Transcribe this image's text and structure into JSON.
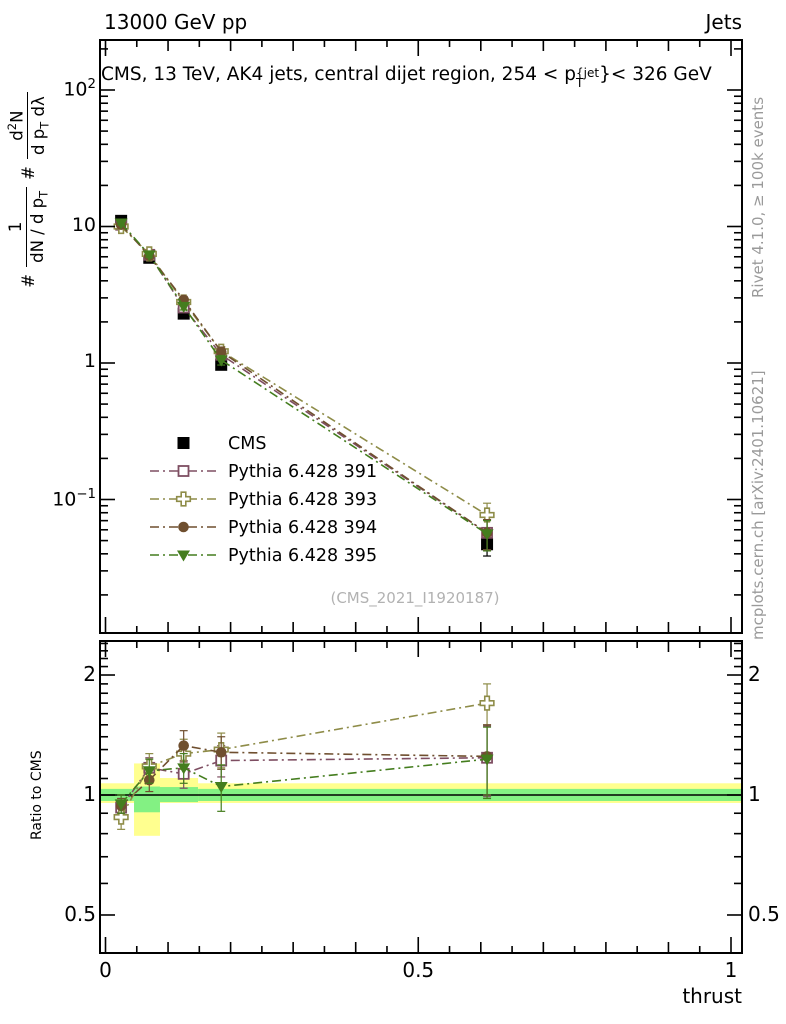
{
  "header": {
    "left": "13000 GeV pp",
    "right": "Jets"
  },
  "title": {
    "pre": "CMS, 13 TeV, AK4 jets, central dijet region, 254 < p",
    "sup": "{jet",
    "sub": "T",
    "post": "}< 326 GeV"
  },
  "ylabel": {
    "hash1": "#",
    "f1num": "1",
    "f1den_pre": "dN / d p",
    "f1den_sub": "T",
    "hash2": "#",
    "f2num_pre": "d",
    "f2num_sup": "2",
    "f2num_post": "N",
    "f2den_pre": "d p",
    "f2den_sub": "T",
    "f2den_post": " dλ"
  },
  "watermark": "(CMS_2021_I1920187)",
  "side_notes": {
    "rivet": "Rivet 4.1.0, ≥ 100k events",
    "mcplots": "mcplots.cern.ch [arXiv:2401.10621]"
  },
  "ratio_label": "Ratio to CMS",
  "xlabel": "thrust",
  "chart_data": {
    "type": "scatter",
    "title": "CMS, 13 TeV, AK4 jets, central dijet region, 254 < pT^jet < 326 GeV",
    "xlabel": "thrust",
    "ylabel": "# 1/(dN/dpT) # d2N/(dpT dlambda)",
    "ratio_ylabel": "Ratio to CMS",
    "x_axis": {
      "range": [
        -0.009,
        1.018
      ],
      "minor_step": 0.05,
      "medium_step": 0.1,
      "ticks": [
        {
          "v": 0,
          "label": "0"
        },
        {
          "v": 0.5,
          "label": "0.5"
        },
        {
          "v": 1,
          "label": "1"
        }
      ]
    },
    "main_y_axis": {
      "scale": "log",
      "range": [
        0.0105,
        235
      ],
      "ticks": [
        {
          "v": 100,
          "label": "10^2"
        },
        {
          "v": 10,
          "label": "10"
        },
        {
          "v": 1,
          "label": "1"
        },
        {
          "v": 0.1,
          "label": "10^−1"
        }
      ]
    },
    "ratio_y_axis": {
      "scale": "log",
      "range": [
        0.4,
        2.43
      ],
      "ticks": [
        {
          "v": 2,
          "label": "2"
        },
        {
          "v": 1,
          "label": "1"
        },
        {
          "v": 0.5,
          "label": "0.5"
        }
      ]
    },
    "x": [
      0.025,
      0.07,
      0.125,
      0.185,
      0.61
    ],
    "series": [
      {
        "name": "CMS",
        "marker": "square-filled",
        "color": "#000000",
        "line": "none",
        "values": [
          11.0,
          5.9,
          2.3,
          0.97,
          0.047
        ],
        "yerr_rel": [
          0.04,
          0.04,
          0.05,
          0.06,
          0.18
        ],
        "ratio": null,
        "ratio_err": null
      },
      {
        "name": "Pythia 6.428 391",
        "marker": "square-open",
        "color": "#7e4e62",
        "line": "dashdot",
        "values": [
          10.3,
          6.2,
          2.55,
          1.15,
          0.057
        ],
        "yerr_rel": [
          0.03,
          0.04,
          0.06,
          0.08,
          0.25
        ],
        "ratio": [
          0.93,
          1.17,
          1.13,
          1.22,
          1.24
        ],
        "ratio_err": [
          0.05,
          0.07,
          0.09,
          0.11,
          0.25
        ]
      },
      {
        "name": "Pythia 6.428 393",
        "marker": "cross-open",
        "color": "#8e8c48",
        "line": "dashdot",
        "values": [
          10.0,
          6.3,
          2.8,
          1.22,
          0.077
        ],
        "yerr_rel": [
          0.03,
          0.04,
          0.06,
          0.08,
          0.22
        ],
        "ratio": [
          0.88,
          1.18,
          1.27,
          1.3,
          1.7
        ],
        "ratio_err": [
          0.06,
          0.09,
          0.11,
          0.13,
          0.2
        ]
      },
      {
        "name": "Pythia 6.428 394",
        "marker": "circle-filled",
        "color": "#6f4f2f",
        "line": "dashdot",
        "values": [
          10.3,
          6.1,
          2.9,
          1.21,
          0.057
        ],
        "yerr_rel": [
          0.03,
          0.04,
          0.06,
          0.08,
          0.25
        ],
        "ratio": [
          0.94,
          1.09,
          1.33,
          1.28,
          1.25
        ],
        "ratio_err": [
          0.04,
          0.07,
          0.12,
          0.12,
          0.25
        ]
      },
      {
        "name": "Pythia 6.428 395",
        "marker": "triangle-down-filled",
        "color": "#447d1e",
        "line": "dashdot",
        "values": [
          10.6,
          6.2,
          2.6,
          1.05,
          0.056
        ],
        "yerr_rel": [
          0.03,
          0.04,
          0.06,
          0.08,
          0.25
        ],
        "ratio": [
          0.95,
          1.15,
          1.17,
          1.05,
          1.23
        ],
        "ratio_err": [
          0.05,
          0.08,
          0.1,
          0.14,
          0.25
        ]
      }
    ],
    "ref_line": 1,
    "ratio_bands": {
      "colors": {
        "yellow": "#ffff8f",
        "green": "#83f183"
      },
      "segments": [
        {
          "x0": -0.009,
          "x1": 0.0456,
          "yellow": [
            0.955,
            1.07
          ],
          "green": [
            0.966,
            1.036
          ]
        },
        {
          "x0": 0.0456,
          "x1": 0.0871,
          "yellow": [
            0.79,
            1.2
          ],
          "green": [
            0.905,
            1.05
          ]
        },
        {
          "x0": 0.0871,
          "x1": 0.148,
          "yellow": [
            0.955,
            1.103
          ],
          "green": [
            0.96,
            1.047
          ]
        },
        {
          "x0": 0.148,
          "x1": 1.018,
          "yellow": [
            0.955,
            1.07
          ],
          "green": [
            0.966,
            1.036
          ]
        }
      ]
    },
    "legend_position": "inside-left-middle",
    "grid": false
  }
}
